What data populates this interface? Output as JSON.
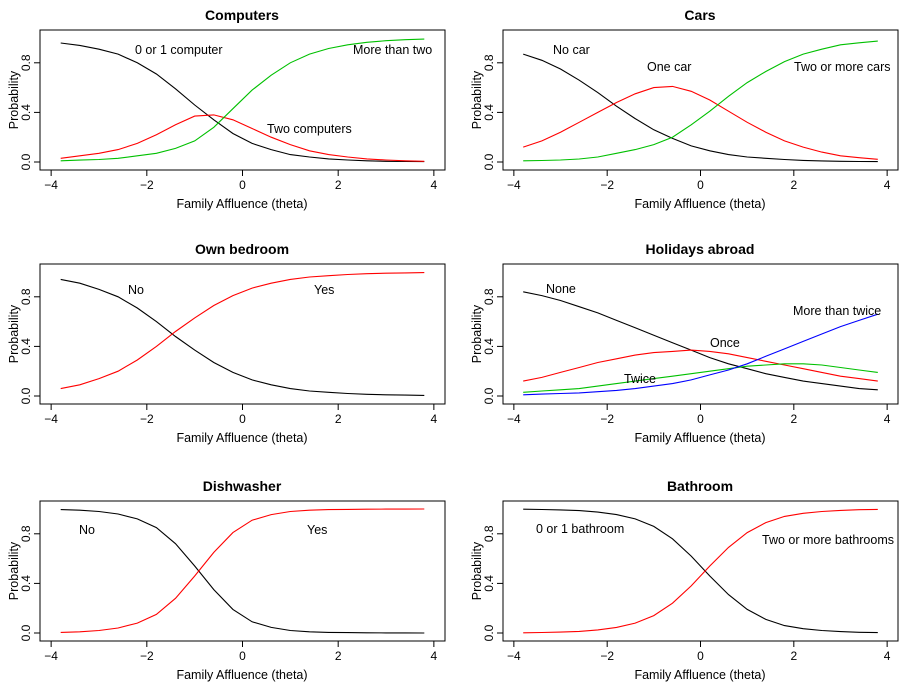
{
  "chart_data": [
    {
      "type": "line",
      "title": "Computers",
      "xlabel": "Family Affluence (theta)",
      "ylabel": "Probability",
      "xlim": [
        -4,
        4
      ],
      "ylim": [
        0,
        1
      ],
      "xticks": [
        "-4",
        "-2",
        "0",
        "2",
        "4"
      ],
      "yticks": [
        "0.0",
        "0.4",
        "0.8"
      ],
      "x": [
        -3.8,
        -3.4,
        -3.0,
        -2.6,
        -2.2,
        -1.8,
        -1.4,
        -1.0,
        -0.6,
        -0.2,
        0.2,
        0.6,
        1.0,
        1.4,
        1.8,
        2.2,
        2.6,
        3.0,
        3.4,
        3.8
      ],
      "series": [
        {
          "name": "0 or 1 computer",
          "color": "#000000",
          "values": [
            0.96,
            0.94,
            0.91,
            0.87,
            0.8,
            0.71,
            0.59,
            0.46,
            0.34,
            0.23,
            0.15,
            0.1,
            0.06,
            0.04,
            0.025,
            0.016,
            0.01,
            0.006,
            0.004,
            0.003
          ]
        },
        {
          "name": "Two computers",
          "color": "#ff0000",
          "values": [
            0.03,
            0.05,
            0.07,
            0.1,
            0.15,
            0.22,
            0.3,
            0.37,
            0.38,
            0.34,
            0.27,
            0.2,
            0.14,
            0.09,
            0.06,
            0.04,
            0.025,
            0.016,
            0.01,
            0.006
          ]
        },
        {
          "name": "More than two",
          "color": "#00c000",
          "values": [
            0.01,
            0.015,
            0.02,
            0.03,
            0.05,
            0.07,
            0.11,
            0.17,
            0.28,
            0.43,
            0.58,
            0.7,
            0.8,
            0.87,
            0.915,
            0.945,
            0.965,
            0.978,
            0.986,
            0.991
          ]
        }
      ],
      "annotations": [
        "0 or 1 computer",
        "Two computers",
        "More than two"
      ]
    },
    {
      "type": "line",
      "title": "Cars",
      "xlabel": "Family Affluence (theta)",
      "ylabel": "Probability",
      "xlim": [
        -4,
        4
      ],
      "ylim": [
        0,
        1
      ],
      "xticks": [
        "-4",
        "-2",
        "0",
        "2",
        "4"
      ],
      "yticks": [
        "0.0",
        "0.4",
        "0.8"
      ],
      "x": [
        -3.8,
        -3.4,
        -3.0,
        -2.6,
        -2.2,
        -1.8,
        -1.4,
        -1.0,
        -0.6,
        -0.2,
        0.2,
        0.6,
        1.0,
        1.4,
        1.8,
        2.2,
        2.6,
        3.0,
        3.4,
        3.8
      ],
      "series": [
        {
          "name": "No car",
          "color": "#000000",
          "values": [
            0.87,
            0.82,
            0.75,
            0.66,
            0.56,
            0.45,
            0.35,
            0.26,
            0.19,
            0.13,
            0.09,
            0.06,
            0.04,
            0.03,
            0.02,
            0.013,
            0.009,
            0.006,
            0.004,
            0.003
          ]
        },
        {
          "name": "One car",
          "color": "#ff0000",
          "values": [
            0.12,
            0.17,
            0.24,
            0.32,
            0.4,
            0.48,
            0.55,
            0.6,
            0.61,
            0.57,
            0.5,
            0.41,
            0.32,
            0.24,
            0.17,
            0.12,
            0.08,
            0.05,
            0.035,
            0.022
          ]
        },
        {
          "name": "Two or more cars",
          "color": "#00c000",
          "values": [
            0.01,
            0.012,
            0.016,
            0.024,
            0.04,
            0.07,
            0.1,
            0.14,
            0.2,
            0.3,
            0.41,
            0.53,
            0.64,
            0.73,
            0.81,
            0.87,
            0.91,
            0.945,
            0.961,
            0.975
          ]
        }
      ],
      "annotations": [
        "No car",
        "One car",
        "Two or more cars"
      ]
    },
    {
      "type": "line",
      "title": "Own bedroom",
      "xlabel": "Family Affluence (theta)",
      "ylabel": "Probability",
      "xlim": [
        -4,
        4
      ],
      "ylim": [
        0,
        1
      ],
      "xticks": [
        "-4",
        "-2",
        "0",
        "2",
        "4"
      ],
      "yticks": [
        "0.0",
        "0.4",
        "0.8"
      ],
      "x": [
        -3.8,
        -3.4,
        -3.0,
        -2.6,
        -2.2,
        -1.8,
        -1.4,
        -1.0,
        -0.6,
        -0.2,
        0.2,
        0.6,
        1.0,
        1.4,
        1.8,
        2.2,
        2.6,
        3.0,
        3.4,
        3.8
      ],
      "series": [
        {
          "name": "No",
          "color": "#000000",
          "values": [
            0.94,
            0.91,
            0.86,
            0.8,
            0.71,
            0.6,
            0.48,
            0.37,
            0.27,
            0.19,
            0.13,
            0.09,
            0.06,
            0.04,
            0.03,
            0.02,
            0.014,
            0.01,
            0.007,
            0.005
          ]
        },
        {
          "name": "Yes",
          "color": "#ff0000",
          "values": [
            0.06,
            0.09,
            0.14,
            0.2,
            0.29,
            0.4,
            0.52,
            0.63,
            0.73,
            0.81,
            0.87,
            0.91,
            0.94,
            0.96,
            0.97,
            0.98,
            0.986,
            0.99,
            0.993,
            0.995
          ]
        }
      ],
      "annotations": [
        "No",
        "Yes"
      ]
    },
    {
      "type": "line",
      "title": "Holidays abroad",
      "xlabel": "Family Affluence (theta)",
      "ylabel": "Probability",
      "xlim": [
        -4,
        4
      ],
      "ylim": [
        0,
        1
      ],
      "xticks": [
        "-4",
        "-2",
        "0",
        "2",
        "4"
      ],
      "yticks": [
        "0.0",
        "0.4",
        "0.8"
      ],
      "x": [
        -3.8,
        -3.4,
        -3.0,
        -2.6,
        -2.2,
        -1.8,
        -1.4,
        -1.0,
        -0.6,
        -0.2,
        0.2,
        0.6,
        1.0,
        1.4,
        1.8,
        2.2,
        2.6,
        3.0,
        3.4,
        3.8
      ],
      "series": [
        {
          "name": "None",
          "color": "#000000",
          "values": [
            0.84,
            0.81,
            0.77,
            0.72,
            0.67,
            0.61,
            0.55,
            0.49,
            0.43,
            0.37,
            0.31,
            0.26,
            0.22,
            0.18,
            0.15,
            0.12,
            0.1,
            0.08,
            0.06,
            0.05
          ]
        },
        {
          "name": "Once",
          "color": "#ff0000",
          "values": [
            0.12,
            0.15,
            0.19,
            0.23,
            0.27,
            0.3,
            0.33,
            0.35,
            0.36,
            0.37,
            0.36,
            0.34,
            0.31,
            0.28,
            0.25,
            0.22,
            0.19,
            0.16,
            0.14,
            0.12
          ]
        },
        {
          "name": "Twice",
          "color": "#00c000",
          "values": [
            0.03,
            0.04,
            0.05,
            0.06,
            0.08,
            0.1,
            0.12,
            0.14,
            0.16,
            0.18,
            0.2,
            0.22,
            0.24,
            0.25,
            0.26,
            0.26,
            0.25,
            0.23,
            0.21,
            0.19
          ]
        },
        {
          "name": "More than twice",
          "color": "#0000ff",
          "values": [
            0.01,
            0.015,
            0.02,
            0.025,
            0.035,
            0.045,
            0.06,
            0.08,
            0.1,
            0.13,
            0.17,
            0.21,
            0.26,
            0.32,
            0.38,
            0.44,
            0.5,
            0.56,
            0.61,
            0.66
          ]
        }
      ],
      "annotations": [
        "None",
        "Once",
        "Twice",
        "More than twice"
      ]
    },
    {
      "type": "line",
      "title": "Dishwasher",
      "xlabel": "Family Affluence (theta)",
      "ylabel": "Probability",
      "xlim": [
        -4,
        4
      ],
      "ylim": [
        0,
        1
      ],
      "xticks": [
        "-4",
        "-2",
        "0",
        "2",
        "4"
      ],
      "yticks": [
        "0.0",
        "0.4",
        "0.8"
      ],
      "x": [
        -3.8,
        -3.4,
        -3.0,
        -2.6,
        -2.2,
        -1.8,
        -1.4,
        -1.0,
        -0.6,
        -0.2,
        0.2,
        0.6,
        1.0,
        1.4,
        1.8,
        2.2,
        2.6,
        3.0,
        3.4,
        3.8
      ],
      "series": [
        {
          "name": "No",
          "color": "#000000",
          "values": [
            0.995,
            0.99,
            0.98,
            0.96,
            0.92,
            0.85,
            0.72,
            0.54,
            0.35,
            0.19,
            0.09,
            0.045,
            0.02,
            0.01,
            0.005,
            0.003,
            0.002,
            0.001,
            0.001,
            0.0
          ]
        },
        {
          "name": "Yes",
          "color": "#ff0000",
          "values": [
            0.005,
            0.01,
            0.02,
            0.04,
            0.08,
            0.15,
            0.28,
            0.46,
            0.65,
            0.81,
            0.91,
            0.955,
            0.98,
            0.99,
            0.995,
            0.997,
            0.998,
            0.999,
            0.999,
            1.0
          ]
        }
      ],
      "annotations": [
        "No",
        "Yes"
      ]
    },
    {
      "type": "line",
      "title": "Bathroom",
      "xlabel": "Family Affluence (theta)",
      "ylabel": "Probability",
      "xlim": [
        -4,
        4
      ],
      "ylim": [
        0,
        1
      ],
      "xticks": [
        "-4",
        "-2",
        "0",
        "2",
        "4"
      ],
      "yticks": [
        "0.0",
        "0.4",
        "0.8"
      ],
      "x": [
        -3.8,
        -3.4,
        -3.0,
        -2.6,
        -2.2,
        -1.8,
        -1.4,
        -1.0,
        -0.6,
        -0.2,
        0.2,
        0.6,
        1.0,
        1.4,
        1.8,
        2.2,
        2.6,
        3.0,
        3.4,
        3.8
      ],
      "series": [
        {
          "name": "0 or 1 bathroom",
          "color": "#000000",
          "values": [
            0.998,
            0.996,
            0.993,
            0.987,
            0.975,
            0.955,
            0.92,
            0.86,
            0.76,
            0.62,
            0.46,
            0.31,
            0.19,
            0.11,
            0.06,
            0.035,
            0.02,
            0.011,
            0.006,
            0.003
          ]
        },
        {
          "name": "Two or more bathrooms",
          "color": "#ff0000",
          "values": [
            0.002,
            0.004,
            0.007,
            0.013,
            0.025,
            0.045,
            0.08,
            0.14,
            0.24,
            0.38,
            0.54,
            0.69,
            0.81,
            0.89,
            0.94,
            0.965,
            0.98,
            0.989,
            0.994,
            0.997
          ]
        }
      ],
      "annotations": [
        "0 or 1 bathroom",
        "Two or more bathrooms"
      ]
    }
  ]
}
